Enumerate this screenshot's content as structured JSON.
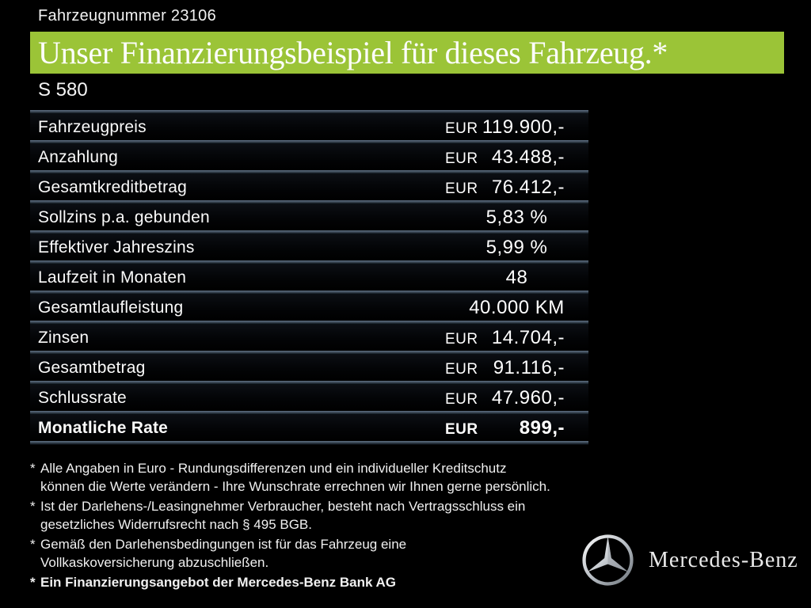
{
  "header": {
    "vehicle_number": "Fahrzeugnummer 23106",
    "title": "Unser Finanzierungsbeispiel für dieses Fahrzeug.*",
    "model": "S 580"
  },
  "financing_table": {
    "rows": [
      {
        "label": "Fahrzeugpreis",
        "currency": "EUR",
        "value": "119.900,-",
        "bold": false
      },
      {
        "label": "Anzahlung",
        "currency": "EUR",
        "value": "43.488,-",
        "bold": false
      },
      {
        "label": "Gesamtkreditbetrag",
        "currency": "EUR",
        "value": "76.412,-",
        "bold": false
      },
      {
        "label": "Sollzins p.a. gebunden",
        "currency": "",
        "value": "5,83 %",
        "bold": false
      },
      {
        "label": "Effektiver Jahreszins",
        "currency": "",
        "value": "5,99 %",
        "bold": false
      },
      {
        "label": "Laufzeit in Monaten",
        "currency": "",
        "value": "48",
        "bold": false
      },
      {
        "label": "Gesamtlaufleistung",
        "currency": "",
        "value": "40.000 KM",
        "bold": false
      },
      {
        "label": "Zinsen",
        "currency": "EUR",
        "value": "14.704,-",
        "bold": false
      },
      {
        "label": "Gesamtbetrag",
        "currency": "EUR",
        "value": "91.116,-",
        "bold": false
      },
      {
        "label": "Schlussrate",
        "currency": "EUR",
        "value": "47.960,-",
        "bold": false
      },
      {
        "label": "Monatliche Rate",
        "currency": "EUR",
        "value": "899,-",
        "bold": true
      }
    ]
  },
  "footnotes": [
    {
      "marker": "*",
      "bold": false,
      "lines": [
        "Alle Angaben in Euro - Rundungsdifferenzen und ein individueller Kreditschutz",
        "können die Werte verändern - Ihre Wunschrate errechnen wir Ihnen gerne persönlich."
      ]
    },
    {
      "marker": "*",
      "bold": false,
      "lines": [
        "Ist der Darlehens-/Leasingnehmer Verbraucher, besteht nach Vertragsschluss ein",
        "gesetzliches Widerrufsrecht nach § 495 BGB."
      ]
    },
    {
      "marker": "*",
      "bold": false,
      "lines": [
        "Gemäß den Darlehensbedingungen ist für das Fahrzeug eine",
        "Vollkaskoversicherung abzuschließen."
      ]
    },
    {
      "marker": "*",
      "bold": true,
      "lines": [
        "Ein Finanzierungsangebot der Mercedes-Benz Bank AG"
      ]
    }
  ],
  "brand": {
    "logo": "mercedes-star",
    "wordmark": "Mercedes-Benz"
  },
  "colors": {
    "background": "#000000",
    "accent_green": "#9BC437",
    "text": "#FFFFFF",
    "divider_top": "#5D6F82"
  }
}
